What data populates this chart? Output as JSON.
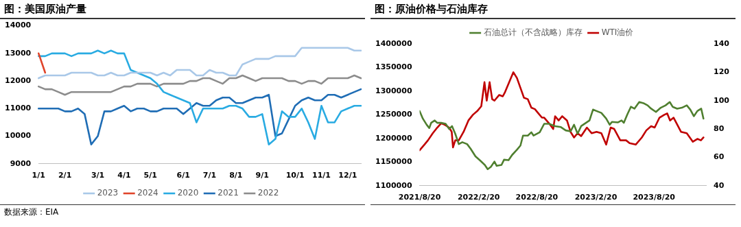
{
  "chart_data": [
    {
      "type": "line",
      "title": "图：美国原油产量",
      "categories": [
        "1/1",
        null,
        null,
        null,
        "2/1",
        null,
        null,
        null,
        null,
        "3/1",
        null,
        null,
        null,
        "4/1",
        null,
        null,
        null,
        "5/1",
        null,
        null,
        null,
        null,
        "6/1",
        null,
        null,
        null,
        "7/1",
        null,
        null,
        null,
        "8/1",
        null,
        null,
        null,
        "9/1",
        null,
        null,
        null,
        null,
        "10/1",
        null,
        null,
        null,
        "11/1",
        null,
        null,
        null,
        "12/1",
        null,
        null
      ],
      "series": [
        {
          "name": "2023",
          "color": "#a9c8e8",
          "values": [
            12100,
            12200,
            12200,
            12200,
            12200,
            12300,
            12300,
            12300,
            12300,
            12200,
            12200,
            12300,
            12200,
            12200,
            12300,
            12300,
            12300,
            12300,
            12200,
            12300,
            12200,
            12400,
            12400,
            12400,
            12200,
            12200,
            12400,
            12300,
            12300,
            12200,
            12200,
            12600,
            12700,
            12800,
            12800,
            12800,
            12900,
            12900,
            12900,
            12900,
            13200,
            13200,
            13200,
            13200,
            13200,
            13200,
            13200,
            13200,
            13100,
            13100
          ]
        },
        {
          "name": "2024",
          "color": "#e0442a",
          "values": [
            13000,
            12300,
            null,
            null,
            null,
            null,
            null,
            null,
            null,
            null,
            null,
            null,
            null,
            null,
            null,
            null,
            null,
            null,
            null,
            null,
            null,
            null,
            null,
            null,
            null,
            null,
            null,
            null,
            null,
            null,
            null,
            null,
            null,
            null,
            null,
            null,
            null,
            null,
            null,
            null,
            null,
            null,
            null,
            null,
            null,
            null,
            null,
            null,
            null,
            null
          ]
        },
        {
          "name": "2020",
          "color": "#29abe2",
          "values": [
            12900,
            12900,
            13000,
            13000,
            13000,
            12900,
            13000,
            13000,
            13000,
            13100,
            13000,
            13100,
            13000,
            13000,
            12400,
            12300,
            12200,
            12100,
            11900,
            11600,
            11500,
            11400,
            11300,
            11200,
            10500,
            11000,
            11000,
            11000,
            11000,
            11100,
            11100,
            11000,
            10700,
            10700,
            10800,
            9700,
            9900,
            10900,
            10700,
            10700,
            11000,
            10500,
            9900,
            11100,
            10500,
            10500,
            10900,
            11000,
            11100,
            11100
          ]
        },
        {
          "name": "2021",
          "color": "#1f6db5",
          "values": [
            11000,
            11000,
            11000,
            11000,
            10900,
            10900,
            11000,
            10800,
            9700,
            10000,
            10900,
            10900,
            11000,
            11100,
            10900,
            11000,
            11000,
            10900,
            10900,
            11000,
            11000,
            11000,
            10800,
            11000,
            11200,
            11100,
            11100,
            11300,
            11400,
            11400,
            11200,
            11200,
            11300,
            11400,
            11400,
            11500,
            10000,
            10100,
            10600,
            11100,
            11300,
            11400,
            11300,
            11300,
            11500,
            11500,
            11400,
            11500,
            11600,
            11700
          ]
        },
        {
          "name": "2022",
          "color": "#8c8c8c",
          "values": [
            11800,
            11700,
            11700,
            11600,
            11500,
            11600,
            11600,
            11600,
            11600,
            11600,
            11600,
            11600,
            11700,
            11800,
            11800,
            11900,
            11900,
            11900,
            11800,
            11900,
            11900,
            11900,
            11900,
            12000,
            12000,
            12100,
            12100,
            12000,
            11900,
            12100,
            12100,
            12200,
            12100,
            12000,
            12100,
            12100,
            12100,
            12100,
            12000,
            12000,
            11900,
            12000,
            12000,
            11900,
            12100,
            12100,
            12100,
            12100,
            12200,
            12100
          ]
        }
      ],
      "ylim": [
        9000,
        14000
      ],
      "yticks": [
        9000,
        10000,
        11000,
        12000,
        13000,
        14000
      ],
      "legend": "bottom",
      "marker": "none",
      "grid": false,
      "annotations": [
        "数据来源：EIA"
      ]
    },
    {
      "type": "line",
      "title": "图：原油价格与石油库存",
      "series": [
        {
          "name": "石油总计（不含战略）库存",
          "color": "#4f7f2f",
          "x": [
            "2021-08-20",
            "2021-08-30",
            "2021-09-11",
            "2021-09-19",
            "2021-09-25",
            "2021-10-06",
            "2021-10-14",
            "2021-10-26",
            "2021-11-09",
            "2021-11-20",
            "2021-11-29",
            "2021-12-09",
            "2021-12-20",
            "2021-12-31",
            "2022-01-15",
            "2022-01-26",
            "2022-02-10",
            "2022-02-25",
            "2022-03-11",
            "2022-03-20",
            "2022-03-30",
            "2022-04-10",
            "2022-04-17",
            "2022-05-02",
            "2022-05-10",
            "2022-05-24",
            "2022-06-04",
            "2022-06-19",
            "2022-06-30",
            "2022-07-08",
            "2022-07-23",
            "2022-08-03",
            "2022-08-10",
            "2022-08-29",
            "2022-09-12",
            "2022-09-27",
            "2022-10-16",
            "2022-11-03",
            "2022-11-18",
            "2022-12-03",
            "2022-12-14",
            "2022-12-25",
            "2023-01-05",
            "2023-01-20",
            "2023-01-31",
            "2023-02-11",
            "2023-02-22",
            "2023-03-09",
            "2023-03-24",
            "2023-04-04",
            "2023-04-11",
            "2023-04-30",
            "2023-05-11",
            "2023-05-18",
            "2023-05-29",
            "2023-06-09",
            "2023-06-20",
            "2023-07-05",
            "2023-07-20",
            "2023-07-31",
            "2023-08-11",
            "2023-08-26",
            "2023-09-10",
            "2023-09-25",
            "2023-10-08",
            "2023-10-17",
            "2023-10-31",
            "2023-11-15",
            "2023-11-30",
            "2023-12-11",
            "2023-12-22",
            "2024-01-02",
            "2024-01-14",
            "2024-01-21"
          ],
          "values": [
            1258000,
            1242000,
            1229000,
            1222000,
            1233000,
            1238000,
            1233000,
            1233000,
            1231000,
            1220000,
            1226000,
            1210000,
            1188000,
            1192000,
            1188000,
            1178000,
            1162000,
            1153000,
            1144000,
            1135000,
            1140000,
            1151000,
            1142000,
            1144000,
            1155000,
            1154000,
            1165000,
            1176000,
            1185000,
            1206000,
            1206000,
            1213000,
            1206000,
            1213000,
            1231000,
            1231000,
            1226000,
            1224000,
            1217000,
            1215000,
            1229000,
            1210000,
            1226000,
            1233000,
            1238000,
            1261000,
            1258000,
            1254000,
            1242000,
            1229000,
            1235000,
            1234000,
            1238000,
            1233000,
            1251000,
            1267000,
            1263000,
            1277000,
            1274000,
            1270000,
            1263000,
            1256000,
            1265000,
            1270000,
            1277000,
            1267000,
            1263000,
            1265000,
            1270000,
            1261000,
            1247000,
            1258000,
            1263000,
            1242000
          ]
        },
        {
          "name": "WTI油价",
          "color": "#c00000",
          "axis": "y2",
          "x": [
            "2021-08-20",
            "2021-09-04",
            "2021-09-15",
            "2021-09-30",
            "2021-10-14",
            "2021-10-26",
            "2021-11-06",
            "2021-11-20",
            "2021-11-28",
            "2021-12-02",
            "2021-12-09",
            "2021-12-20",
            "2022-01-04",
            "2022-01-19",
            "2022-02-02",
            "2022-02-17",
            "2022-02-28",
            "2022-03-10",
            "2022-03-17",
            "2022-03-26",
            "2022-04-03",
            "2022-04-10",
            "2022-04-25",
            "2022-05-06",
            "2022-05-13",
            "2022-05-24",
            "2022-06-08",
            "2022-06-19",
            "2022-06-30",
            "2022-07-11",
            "2022-07-23",
            "2022-08-03",
            "2022-08-14",
            "2022-08-25",
            "2022-09-05",
            "2022-09-12",
            "2022-09-27",
            "2022-10-10",
            "2022-10-16",
            "2022-10-27",
            "2022-11-07",
            "2022-11-22",
            "2022-12-03",
            "2022-12-14",
            "2022-12-25",
            "2023-01-05",
            "2023-01-23",
            "2023-02-07",
            "2023-02-22",
            "2023-03-09",
            "2023-03-24",
            "2023-04-07",
            "2023-04-18",
            "2023-05-07",
            "2023-05-25",
            "2023-06-05",
            "2023-06-24",
            "2023-07-13",
            "2023-07-27",
            "2023-08-11",
            "2023-08-22",
            "2023-09-06",
            "2023-09-21",
            "2023-09-30",
            "2023-10-09",
            "2023-10-20",
            "2023-11-12",
            "2023-11-30",
            "2023-12-19",
            "2024-01-02",
            "2024-01-13",
            "2024-01-21"
          ],
          "values": [
            65,
            69,
            72,
            77,
            81,
            84,
            83,
            81,
            78,
            67,
            72,
            72,
            78,
            86,
            90,
            93,
            96,
            113,
            100,
            113,
            101,
            100,
            104,
            103,
            106,
            112,
            120,
            116,
            109,
            102,
            101,
            95,
            94,
            91,
            88,
            88,
            84,
            80,
            89,
            86,
            89,
            86,
            78,
            74,
            77,
            75,
            81,
            77,
            78,
            77,
            69,
            81,
            80,
            72,
            72,
            70,
            69,
            74,
            79,
            82,
            81,
            88,
            90,
            91,
            86,
            88,
            78,
            77,
            71,
            73,
            72,
            74
          ]
        }
      ],
      "xlim": [
        "2021-08-20",
        "2024-01-29"
      ],
      "xticks": [
        {
          "value": "2021-08-20",
          "label": "2021/8/20"
        },
        {
          "value": "2022-02-20",
          "label": "2022/2/20"
        },
        {
          "value": "2022-08-20",
          "label": "2022/8/20"
        },
        {
          "value": "2023-02-20",
          "label": "2023/2/20"
        },
        {
          "value": "2023-08-20",
          "label": "2023/8/20"
        }
      ],
      "ylim": [
        1100000,
        1400000
      ],
      "yticks": [
        1100000,
        1150000,
        1200000,
        1250000,
        1300000,
        1350000,
        1400000
      ],
      "y2lim": [
        40,
        140
      ],
      "y2ticks": [
        40,
        60,
        80,
        100,
        120,
        140
      ],
      "legend": "top",
      "marker": "none",
      "grid": false
    }
  ]
}
